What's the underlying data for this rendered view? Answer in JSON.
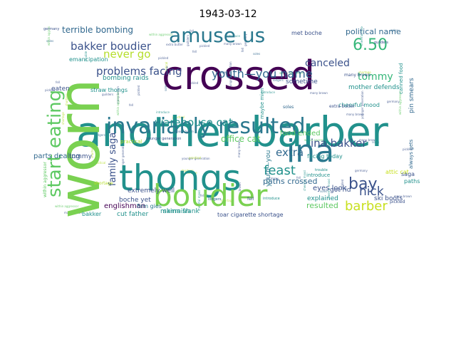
{
  "title": "1943-03-12",
  "palette": {
    "purple": "#440154",
    "indigo": "#3b528b",
    "blue": "#31688e",
    "teal": "#21918c",
    "green": "#35b779",
    "lime": "#8fd744",
    "yellow": "#c8e020"
  },
  "words": [
    {
      "text": "crossed",
      "color": "#440154"
    },
    {
      "text": "another barber",
      "color": "#21918c"
    },
    {
      "text": "thongs",
      "color": "#21918c"
    },
    {
      "text": "ina",
      "color": "#2a788e"
    },
    {
      "text": "worn",
      "color": "#7ad151"
    },
    {
      "text": "boudier",
      "color": "#7ad151"
    },
    {
      "text": "invariably resulted",
      "color": "#2a788e"
    },
    {
      "text": "amuse us",
      "color": "#2a788e"
    },
    {
      "text": "start eating",
      "color": "#5ec962"
    },
    {
      "text": "youth—you name",
      "color": "#31688e"
    },
    {
      "text": "warehouse cat",
      "color": "#21918c"
    },
    {
      "text": "bakker boudier",
      "color": "#3b528b"
    },
    {
      "text": "problems facing",
      "color": "#3b528b"
    },
    {
      "text": "6.50",
      "color": "#35b779"
    },
    {
      "text": "canceled",
      "color": "#3b528b"
    },
    {
      "text": "ina bakker",
      "color": "#3b528b"
    },
    {
      "text": "bay",
      "color": "#3b528b"
    },
    {
      "text": "feast",
      "color": "#21918c"
    },
    {
      "text": "extra",
      "color": "#31688e"
    },
    {
      "text": "nick",
      "color": "#3b528b"
    },
    {
      "text": "barber",
      "color": "#c8e020"
    },
    {
      "text": "never go",
      "color": "#b5de2b"
    },
    {
      "text": "family saga",
      "color": "#3b528b"
    },
    {
      "text": "tommy",
      "color": "#35b779"
    },
    {
      "text": "terrible bombing",
      "color": "#31688e"
    },
    {
      "text": "office cat",
      "color": "#5ec962"
    },
    {
      "text": "political name",
      "color": "#31688e"
    },
    {
      "text": "paths crossed",
      "color": "#31688e"
    },
    {
      "text": "food ended",
      "color": "#5ec962"
    },
    {
      "text": "resulted",
      "color": "#5ec962"
    },
    {
      "text": "parts dealing",
      "color": "#31688e"
    },
    {
      "text": "extremely well",
      "color": "#3b528b"
    },
    {
      "text": "englishman",
      "color": "#440154"
    },
    {
      "text": "boche yet",
      "color": "#3b528b"
    },
    {
      "text": "mama frank",
      "color": "#21918c"
    },
    {
      "text": "firm gies",
      "color": "#2a788e"
    },
    {
      "text": "eyes look",
      "color": "#3b528b"
    },
    {
      "text": "ski boots",
      "color": "#3b528b"
    },
    {
      "text": "cut father",
      "color": "#21918c"
    },
    {
      "text": "skirmish",
      "color": "#21918c"
    },
    {
      "text": "toar cigarette shortage",
      "color": "#3b528b"
    },
    {
      "text": "bakker",
      "color": "#21918c"
    },
    {
      "text": "emancipation",
      "color": "#21918c"
    },
    {
      "text": "bombing raids",
      "color": "#21918c"
    },
    {
      "text": "straw thongs",
      "color": "#21918c"
    },
    {
      "text": "eaten",
      "color": "#3b528b"
    },
    {
      "text": "tommy",
      "color": "#3b528b"
    },
    {
      "text": "sometime",
      "color": "#3b528b"
    },
    {
      "text": "mother defends",
      "color": "#21918c"
    },
    {
      "text": "attic cat",
      "color": "#c8e020"
    },
    {
      "text": "youth—you",
      "color": "#2a788e"
    },
    {
      "text": "maybe mien",
      "color": "#21918c"
    },
    {
      "text": "pin smears",
      "color": "#31688e"
    },
    {
      "text": "canned food",
      "color": "#21918c"
    },
    {
      "text": "met boche",
      "color": "#3b528b"
    },
    {
      "text": "explained",
      "color": "#21918c"
    },
    {
      "text": "got rid",
      "color": "#3b528b"
    },
    {
      "text": "paths",
      "color": "#21918c"
    },
    {
      "text": "saga",
      "color": "#3b528b"
    },
    {
      "text": "always gets",
      "color": "#31688e"
    },
    {
      "text": "introduce",
      "color": "#21918c"
    },
    {
      "text": "facing today",
      "color": "#21918c"
    },
    {
      "text": "practical",
      "color": "#b5de2b"
    },
    {
      "text": "cheerful mood",
      "color": "#21918c"
    },
    {
      "text": "within aggressor",
      "color": "#5ec962"
    },
    {
      "text": "younger generation",
      "color": "#3b528b"
    },
    {
      "text": "soles",
      "color": "#31688e"
    },
    {
      "text": "extra butter",
      "color": "#3b528b"
    },
    {
      "text": "many brown",
      "color": "#3b528b"
    },
    {
      "text": "fell",
      "color": "#3b528b"
    },
    {
      "text": "pickled",
      "color": "#3b528b"
    },
    {
      "text": "shortage",
      "color": "#b5de2b"
    },
    {
      "text": "lodgers",
      "color": "#31688e"
    },
    {
      "text": "trouble",
      "color": "#21918c"
    },
    {
      "text": "guilders",
      "color": "#3b528b"
    },
    {
      "text": "germany",
      "color": "#3b528b"
    },
    {
      "text": "introduce",
      "color": "#21918c"
    }
  ]
}
